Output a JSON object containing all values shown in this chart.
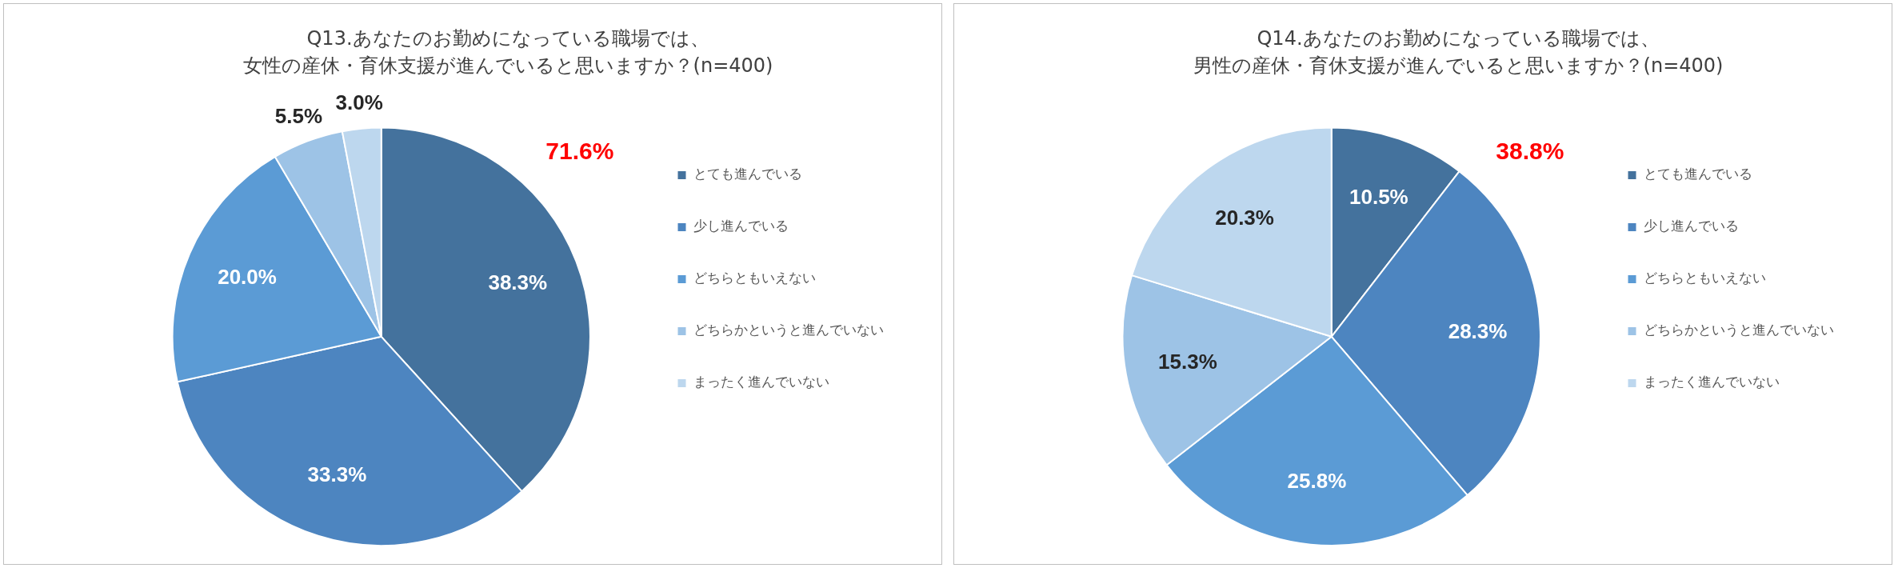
{
  "chart_data": [
    {
      "type": "pie",
      "title": "Q13.あなたのお勤めになっている職場では、",
      "subtitle": "女性の産休・育休支援が進んでいると思いますか？(n=400)",
      "categories": [
        "とても進んでいる",
        "少し進んでいる",
        "どちらともいえない",
        "どちらかというと進んでいない",
        "まったく進んでいない"
      ],
      "values": [
        38.3,
        33.3,
        20.0,
        5.5,
        3.0
      ],
      "value_labels": [
        "38.3%",
        "33.3%",
        "20.0%",
        "5.5%",
        "3.0%"
      ],
      "colors": [
        "#44729d",
        "#4d85c0",
        "#5b9bd5",
        "#9dc3e6",
        "#bdd7ee"
      ],
      "legend": "right",
      "annotations": [
        "71.6%"
      ]
    },
    {
      "type": "pie",
      "title": "Q14.あなたのお勤めになっている職場では、",
      "subtitle": "男性の産休・育休支援が進んでいると思いますか？(n=400)",
      "categories": [
        "とても進んでいる",
        "少し進んでいる",
        "どちらともいえない",
        "どちらかというと進んでいない",
        "まったく進んでいない"
      ],
      "values": [
        10.5,
        28.3,
        25.8,
        15.3,
        20.3
      ],
      "value_labels": [
        "10.5%",
        "28.3%",
        "25.8%",
        "15.3%",
        "20.3%"
      ],
      "colors": [
        "#44729d",
        "#4d85c0",
        "#5b9bd5",
        "#9dc3e6",
        "#bdd7ee"
      ],
      "legend": "right",
      "annotations": [
        "38.8%"
      ]
    }
  ]
}
